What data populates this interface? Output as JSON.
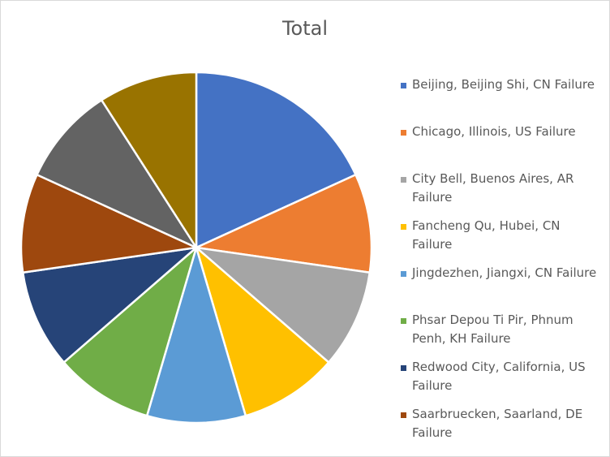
{
  "chart_data": {
    "type": "pie",
    "title": "Total",
    "categories": [
      "Beijing, Beijing Shi, CN Failure",
      "Chicago, Illinois, US Failure",
      "City Bell, Buenos Aires, AR Failure",
      "Fancheng Qu, Hubei, CN Failure",
      "Jingdezhen, Jiangxi, CN Failure",
      "Phsar Depou Ti Pir, Phnum Penh, KH Failure",
      "Redwood City, California, US Failure",
      "Saarbruecken, Saarland, DE Failure",
      "",
      ""
    ],
    "values": [
      2,
      1,
      1,
      1,
      1,
      1,
      1,
      1,
      1,
      1
    ],
    "colors": [
      "#4472c4",
      "#ed7d31",
      "#a5a5a5",
      "#ffc000",
      "#5b9bd5",
      "#70ad47",
      "#264478",
      "#9e480e",
      "#636363",
      "#997300"
    ],
    "legend": {
      "position": "right",
      "visible_entries": [
        "Beijing, Beijing Shi, CN Failure",
        "Chicago, Illinois, US Failure",
        "City Bell, Buenos Aires, AR Failure",
        "Fancheng Qu, Hubei, CN Failure",
        "Jingdezhen, Jiangxi, CN Failure",
        "Phsar Depou Ti Pir, Phnum Penh, KH Failure",
        "Redwood City, California, US Failure",
        "Saarbruecken, Saarland, DE Failure"
      ]
    }
  }
}
